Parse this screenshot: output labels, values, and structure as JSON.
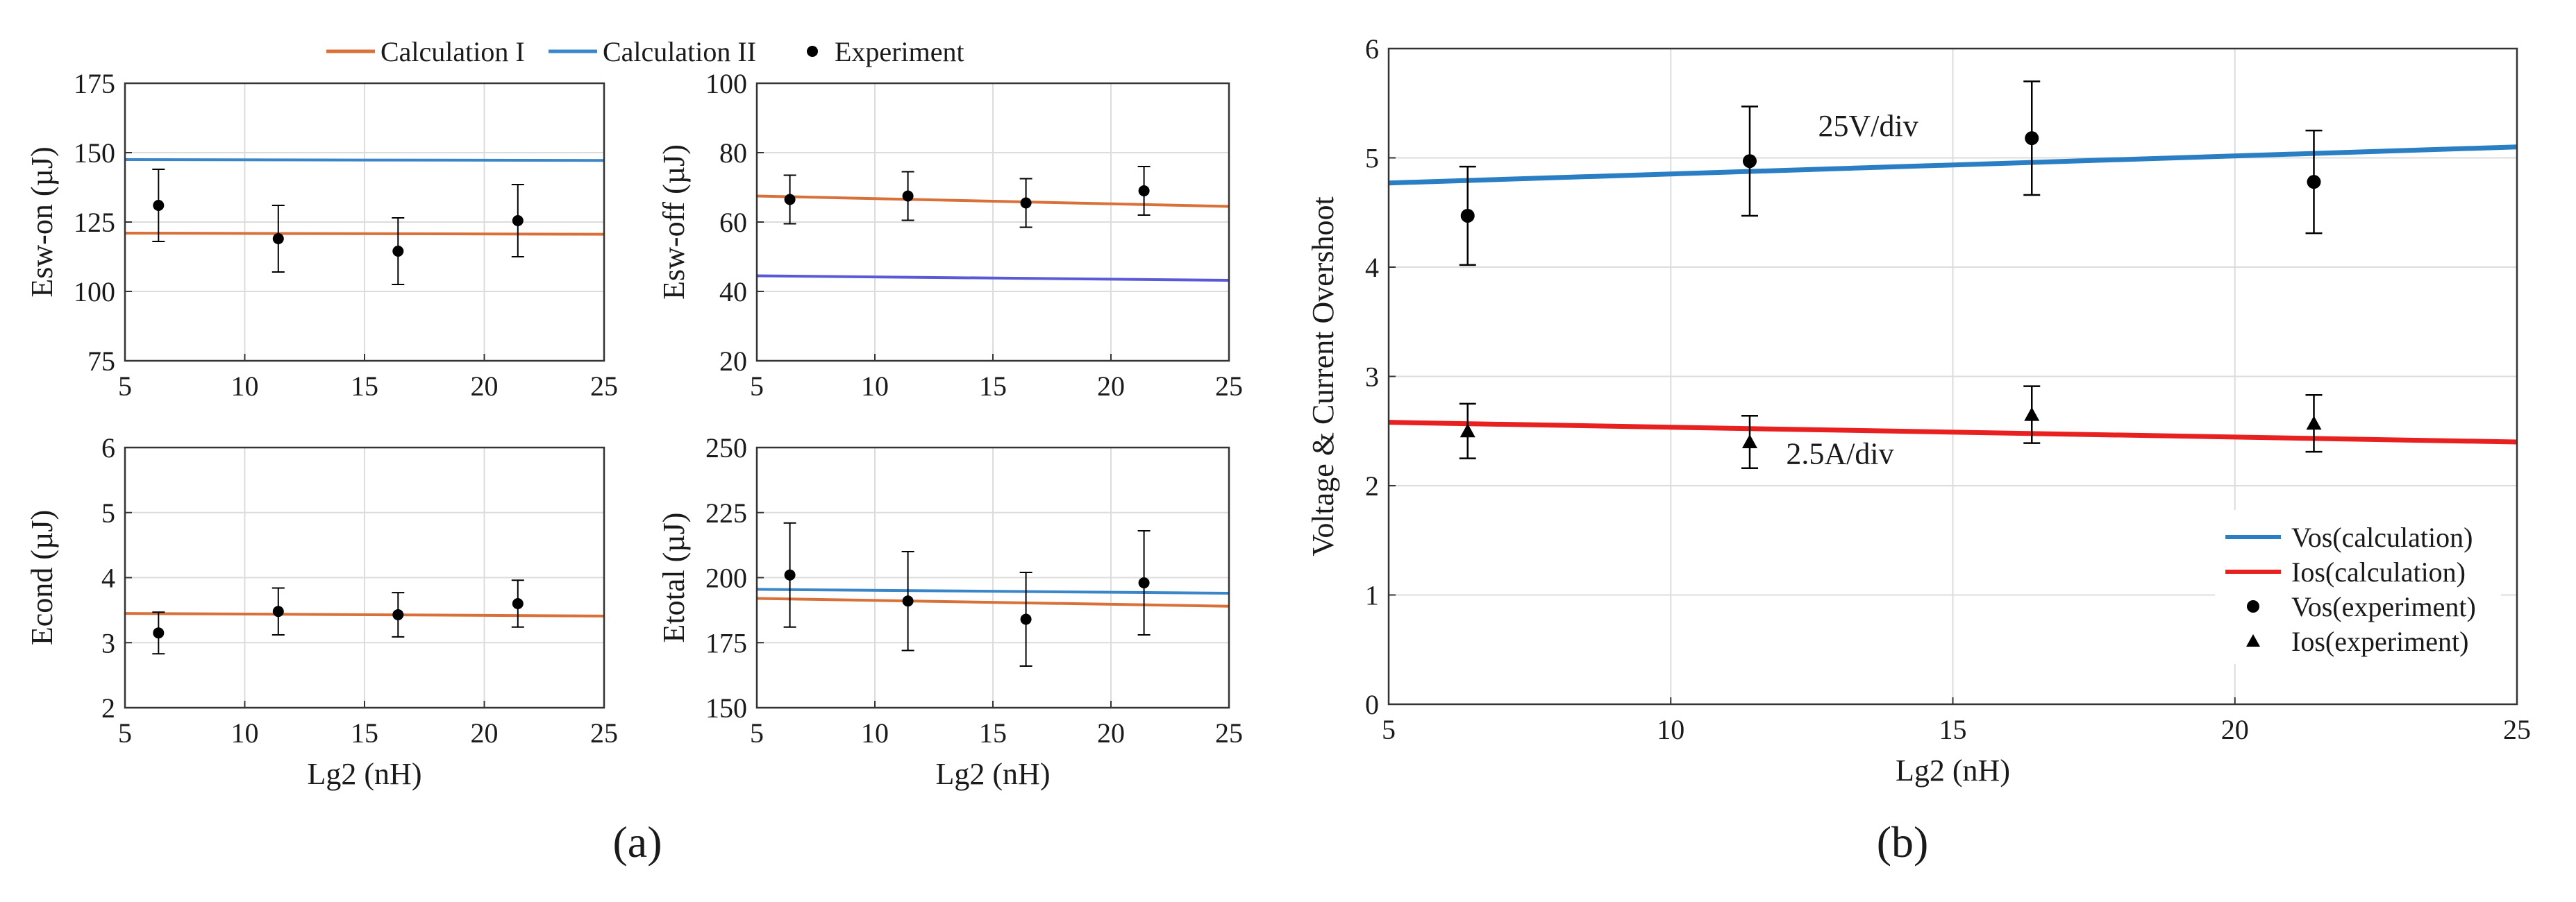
{
  "top_legend": {
    "items": [
      {
        "label": "Calculation I",
        "color": "#d9703a",
        "kind": "line"
      },
      {
        "label": "Calculation II",
        "color": "#3a86c8",
        "kind": "line"
      },
      {
        "label": "Experiment",
        "color": "#000000",
        "kind": "dot"
      }
    ]
  },
  "panel_labels": {
    "a": "(a)",
    "b": "(b)"
  },
  "chart_data": [
    {
      "id": "esw_on",
      "type": "line",
      "xlabel": "",
      "ylabel": "Esw-on (µJ)",
      "xlim": [
        5,
        25
      ],
      "ylim": [
        75,
        175
      ],
      "xticks": [
        5,
        10,
        15,
        20,
        25
      ],
      "yticks": [
        75,
        100,
        125,
        150,
        175
      ],
      "grid": true,
      "series": [
        {
          "name": "Calculation I",
          "color": "#d9703a",
          "x": [
            5,
            25
          ],
          "y": [
            121,
            120.6
          ]
        },
        {
          "name": "Calculation II",
          "color": "#3a86c8",
          "x": [
            5,
            25
          ],
          "y": [
            147.5,
            147.2
          ]
        }
      ],
      "points": [
        {
          "x": 6.4,
          "y": 131,
          "err": 13
        },
        {
          "x": 11.4,
          "y": 119,
          "err": 12
        },
        {
          "x": 16.4,
          "y": 114.5,
          "err": 12
        },
        {
          "x": 21.4,
          "y": 125.5,
          "err": 13
        }
      ]
    },
    {
      "id": "esw_off",
      "type": "line",
      "xlabel": "",
      "ylabel": "Esw-off (µJ)",
      "xlim": [
        5,
        25
      ],
      "ylim": [
        20,
        100
      ],
      "xticks": [
        5,
        10,
        15,
        20,
        25
      ],
      "yticks": [
        20,
        40,
        60,
        80,
        100
      ],
      "grid": true,
      "series": [
        {
          "name": "Calculation I",
          "color": "#d9703a",
          "x": [
            5,
            25
          ],
          "y": [
            67.5,
            64.5
          ]
        },
        {
          "name": "Calculation II",
          "color": "#5a5ad8",
          "x": [
            5,
            25
          ],
          "y": [
            44.5,
            43.2
          ]
        }
      ],
      "points": [
        {
          "x": 6.4,
          "y": 66.5,
          "err": 7
        },
        {
          "x": 11.4,
          "y": 67.5,
          "err": 7
        },
        {
          "x": 16.4,
          "y": 65.5,
          "err": 7
        },
        {
          "x": 21.4,
          "y": 69,
          "err": 7
        }
      ]
    },
    {
      "id": "econd",
      "type": "line",
      "xlabel": "Lg2 (nH)",
      "ylabel": "Econd (µJ)",
      "xlim": [
        5,
        25
      ],
      "ylim": [
        2,
        6
      ],
      "xticks": [
        5,
        10,
        15,
        20,
        25
      ],
      "yticks": [
        2,
        3,
        4,
        5,
        6
      ],
      "grid": true,
      "series": [
        {
          "name": "Calculation I",
          "color": "#d9703a",
          "x": [
            5,
            25
          ],
          "y": [
            3.45,
            3.41
          ]
        }
      ],
      "points": [
        {
          "x": 6.4,
          "y": 3.15,
          "err": 0.32
        },
        {
          "x": 11.4,
          "y": 3.48,
          "err": 0.36
        },
        {
          "x": 16.4,
          "y": 3.43,
          "err": 0.34
        },
        {
          "x": 21.4,
          "y": 3.6,
          "err": 0.36
        }
      ]
    },
    {
      "id": "etotal",
      "type": "line",
      "xlabel": "Lg2 (nH)",
      "ylabel": "Etotal (µJ)",
      "xlim": [
        5,
        25
      ],
      "ylim": [
        150,
        250
      ],
      "xticks": [
        5,
        10,
        15,
        20,
        25
      ],
      "yticks": [
        150,
        175,
        200,
        225,
        250
      ],
      "grid": true,
      "series": [
        {
          "name": "Calculation I",
          "color": "#d9703a",
          "x": [
            5,
            25
          ],
          "y": [
            192,
            189
          ]
        },
        {
          "name": "Calculation II",
          "color": "#3a86c8",
          "x": [
            5,
            25
          ],
          "y": [
            195.5,
            194
          ]
        }
      ],
      "points": [
        {
          "x": 6.4,
          "y": 201,
          "err": 20
        },
        {
          "x": 11.4,
          "y": 191,
          "err": 19
        },
        {
          "x": 16.4,
          "y": 184,
          "err": 18
        },
        {
          "x": 21.4,
          "y": 198,
          "err": 20
        }
      ]
    },
    {
      "id": "overshoot",
      "type": "line",
      "xlabel": "Lg2 (nH)",
      "ylabel": "Voltage & Current Overshoot",
      "xlim": [
        5,
        25
      ],
      "ylim": [
        0,
        6
      ],
      "xticks": [
        5,
        10,
        15,
        20,
        25
      ],
      "yticks": [
        0,
        1,
        2,
        3,
        4,
        5,
        6
      ],
      "grid": true,
      "legend_position": "bottom-right",
      "series": [
        {
          "name": "Vos(calculation)",
          "color": "#2a7fc4",
          "x": [
            5,
            25
          ],
          "y": [
            4.77,
            5.1
          ]
        },
        {
          "name": "Ios(calculation)",
          "color": "#e82020",
          "x": [
            5,
            25
          ],
          "y": [
            2.58,
            2.4
          ]
        }
      ],
      "marker_series": [
        {
          "name": "Vos(experiment)",
          "marker": "circle",
          "points": [
            {
              "x": 6.4,
              "y": 4.47,
              "err": 0.45
            },
            {
              "x": 11.4,
              "y": 4.97,
              "err": 0.5
            },
            {
              "x": 16.4,
              "y": 5.18,
              "err": 0.52
            },
            {
              "x": 21.4,
              "y": 4.78,
              "err": 0.47
            }
          ]
        },
        {
          "name": "Ios(experiment)",
          "marker": "triangle",
          "points": [
            {
              "x": 6.4,
              "y": 2.5,
              "err": 0.25
            },
            {
              "x": 11.4,
              "y": 2.4,
              "err": 0.24
            },
            {
              "x": 16.4,
              "y": 2.65,
              "err": 0.26
            },
            {
              "x": 21.4,
              "y": 2.57,
              "err": 0.26
            }
          ]
        }
      ],
      "annotations": [
        {
          "text": "25V/div",
          "x": 13.5,
          "y": 5.2
        },
        {
          "text": "2.5A/div",
          "x": 13.0,
          "y": 2.2
        }
      ]
    }
  ]
}
